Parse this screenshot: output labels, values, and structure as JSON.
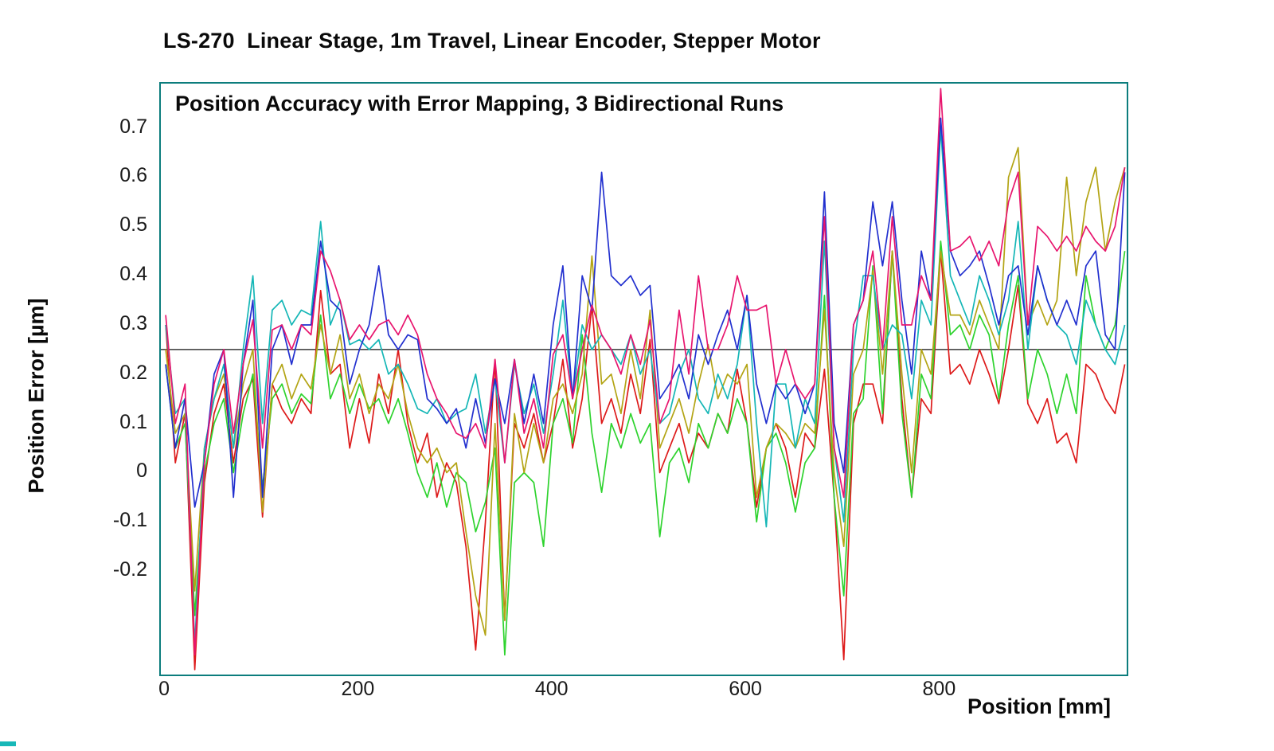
{
  "chart_data": {
    "type": "line",
    "title": "LS-270  Linear Stage, 1m Travel, Linear Encoder, Stepper Motor",
    "subtitle": "Position Accuracy with Error Mapping, 3 Bidirectional Runs",
    "xlabel": "Position [mm]",
    "ylabel": "Position Error [µm]",
    "frame_color": "#0c7d7d",
    "grid": false,
    "legend_position": "none",
    "xlim": [
      -5,
      992
    ],
    "ylim": [
      -0.41,
      0.79
    ],
    "reference_line_y": 0.25,
    "reference_line_color": "#111111",
    "x_start": 0,
    "x_step_mm": 10,
    "n_points": 100,
    "x_ticks": [
      {
        "value": 0,
        "label": "0"
      },
      {
        "value": 200,
        "label": "200"
      },
      {
        "value": 400,
        "label": "400"
      },
      {
        "value": 600,
        "label": "600"
      },
      {
        "value": 800,
        "label": "800"
      }
    ],
    "y_ticks": [
      {
        "value": 0.7,
        "label": "0.7"
      },
      {
        "value": 0.6,
        "label": "0.6"
      },
      {
        "value": 0.5,
        "label": "0.5"
      },
      {
        "value": 0.4,
        "label": "0.4"
      },
      {
        "value": 0.3,
        "label": "0.3"
      },
      {
        "value": 0.2,
        "label": "0.2"
      },
      {
        "value": 0.1,
        "label": "0.1"
      },
      {
        "value": 0.0,
        "label": "0"
      },
      {
        "value": -0.1,
        "label": "-0.1"
      },
      {
        "value": -0.2,
        "label": "-0.2"
      }
    ],
    "series": [
      {
        "name": "red-run",
        "color": "#dd1a1a",
        "values": [
          0.3,
          0.02,
          0.12,
          -0.4,
          -0.02,
          0.12,
          0.18,
          0.02,
          0.15,
          0.19,
          -0.09,
          0.18,
          0.13,
          0.1,
          0.15,
          0.12,
          0.37,
          0.2,
          0.22,
          0.05,
          0.15,
          0.06,
          0.2,
          0.12,
          0.25,
          0.1,
          0.02,
          0.08,
          -0.05,
          0.02,
          -0.02,
          -0.15,
          -0.36,
          -0.1,
          0.23,
          -0.3,
          0.1,
          0.05,
          0.12,
          0.02,
          0.1,
          0.23,
          0.05,
          0.15,
          0.34,
          0.1,
          0.15,
          0.08,
          0.2,
          0.12,
          0.27,
          0.0,
          0.05,
          0.1,
          0.02,
          0.08,
          0.05,
          0.12,
          0.08,
          0.21,
          0.1,
          -0.07,
          0.05,
          0.1,
          0.05,
          -0.05,
          0.08,
          0.05,
          0.21,
          -0.05,
          -0.38,
          0.1,
          0.18,
          0.18,
          0.1,
          0.45,
          0.15,
          -0.05,
          0.15,
          0.12,
          0.45,
          0.2,
          0.22,
          0.18,
          0.25,
          0.2,
          0.14,
          0.25,
          0.38,
          0.14,
          0.1,
          0.15,
          0.06,
          0.08,
          0.02,
          0.22,
          0.2,
          0.15,
          0.12,
          0.22
        ]
      },
      {
        "name": "green-run",
        "color": "#2ed32e",
        "values": [
          0.22,
          0.05,
          0.1,
          -0.29,
          0.0,
          0.1,
          0.15,
          0.0,
          0.12,
          0.2,
          -0.03,
          0.15,
          0.18,
          0.12,
          0.16,
          0.14,
          0.32,
          0.15,
          0.2,
          0.12,
          0.18,
          0.13,
          0.15,
          0.1,
          0.15,
          0.08,
          0.0,
          -0.05,
          0.02,
          -0.07,
          0.0,
          -0.02,
          -0.12,
          -0.06,
          0.05,
          -0.37,
          -0.02,
          0.0,
          -0.02,
          -0.15,
          0.1,
          0.15,
          0.06,
          0.28,
          0.08,
          -0.04,
          0.1,
          0.05,
          0.12,
          0.06,
          0.1,
          -0.13,
          0.02,
          0.05,
          -0.02,
          0.1,
          0.05,
          0.12,
          0.08,
          0.15,
          0.1,
          -0.1,
          0.05,
          0.08,
          0.02,
          -0.08,
          0.02,
          0.05,
          0.36,
          -0.05,
          -0.25,
          0.12,
          0.15,
          0.42,
          0.12,
          0.45,
          0.12,
          -0.05,
          0.2,
          0.15,
          0.47,
          0.28,
          0.3,
          0.25,
          0.32,
          0.28,
          0.15,
          0.3,
          0.4,
          0.15,
          0.25,
          0.2,
          0.12,
          0.2,
          0.12,
          0.4,
          0.3,
          0.25,
          0.3,
          0.45
        ]
      },
      {
        "name": "olive-run",
        "color": "#b3a414",
        "values": [
          0.25,
          0.08,
          0.12,
          -0.24,
          0.05,
          0.15,
          0.2,
          0.05,
          0.18,
          0.25,
          -0.08,
          0.18,
          0.22,
          0.15,
          0.2,
          0.17,
          0.3,
          0.2,
          0.28,
          0.15,
          0.2,
          0.12,
          0.18,
          0.15,
          0.22,
          0.12,
          0.05,
          0.02,
          0.05,
          0.0,
          0.02,
          -0.12,
          -0.25,
          -0.33,
          0.1,
          -0.3,
          0.12,
          0.0,
          0.1,
          0.02,
          0.15,
          0.18,
          0.12,
          0.2,
          0.44,
          0.18,
          0.2,
          0.12,
          0.25,
          0.15,
          0.33,
          0.05,
          0.1,
          0.15,
          0.08,
          0.18,
          0.26,
          0.15,
          0.2,
          0.18,
          0.22,
          -0.05,
          0.05,
          0.1,
          0.08,
          0.05,
          0.1,
          0.08,
          0.33,
          0.0,
          -0.15,
          0.2,
          0.25,
          0.41,
          0.2,
          0.45,
          0.2,
          0.0,
          0.25,
          0.2,
          0.45,
          0.32,
          0.32,
          0.28,
          0.35,
          0.3,
          0.25,
          0.6,
          0.66,
          0.3,
          0.35,
          0.3,
          0.35,
          0.6,
          0.4,
          0.55,
          0.62,
          0.45,
          0.55,
          0.62
        ]
      },
      {
        "name": "cyan-run",
        "color": "#14b6b6",
        "values": [
          0.3,
          0.12,
          0.15,
          -0.35,
          0.05,
          0.15,
          0.22,
          0.05,
          0.25,
          0.4,
          0.1,
          0.33,
          0.35,
          0.3,
          0.33,
          0.32,
          0.51,
          0.3,
          0.35,
          0.26,
          0.27,
          0.25,
          0.27,
          0.2,
          0.22,
          0.18,
          0.13,
          0.12,
          0.15,
          0.1,
          0.12,
          0.13,
          0.2,
          0.08,
          0.19,
          0.02,
          0.22,
          0.12,
          0.18,
          0.08,
          0.2,
          0.35,
          0.15,
          0.3,
          0.25,
          0.28,
          0.25,
          0.22,
          0.28,
          0.2,
          0.25,
          0.1,
          0.12,
          0.2,
          0.25,
          0.15,
          0.12,
          0.2,
          0.15,
          0.22,
          0.36,
          0.1,
          -0.11,
          0.18,
          0.18,
          0.05,
          0.15,
          0.1,
          0.47,
          0.05,
          -0.1,
          0.25,
          0.4,
          0.4,
          0.25,
          0.3,
          0.28,
          0.15,
          0.35,
          0.3,
          0.7,
          0.4,
          0.35,
          0.3,
          0.4,
          0.35,
          0.28,
          0.35,
          0.51,
          0.25,
          0.42,
          0.35,
          0.3,
          0.28,
          0.22,
          0.35,
          0.3,
          0.25,
          0.22,
          0.3
        ]
      },
      {
        "name": "blue-run",
        "color": "#2230cf",
        "values": [
          0.22,
          0.05,
          0.15,
          -0.07,
          0.02,
          0.2,
          0.25,
          -0.05,
          0.22,
          0.35,
          -0.05,
          0.25,
          0.3,
          0.22,
          0.3,
          0.3,
          0.47,
          0.35,
          0.33,
          0.18,
          0.25,
          0.3,
          0.42,
          0.28,
          0.25,
          0.28,
          0.27,
          0.15,
          0.13,
          0.1,
          0.13,
          0.05,
          0.15,
          0.06,
          0.19,
          0.1,
          0.23,
          0.1,
          0.2,
          0.1,
          0.3,
          0.42,
          0.15,
          0.4,
          0.33,
          0.61,
          0.4,
          0.38,
          0.4,
          0.36,
          0.38,
          0.15,
          0.18,
          0.22,
          0.15,
          0.28,
          0.22,
          0.28,
          0.33,
          0.25,
          0.36,
          0.18,
          0.1,
          0.18,
          0.15,
          0.18,
          0.12,
          0.18,
          0.57,
          0.1,
          0.0,
          0.3,
          0.35,
          0.55,
          0.42,
          0.55,
          0.35,
          0.2,
          0.45,
          0.35,
          0.72,
          0.45,
          0.4,
          0.42,
          0.45,
          0.38,
          0.3,
          0.4,
          0.42,
          0.28,
          0.42,
          0.35,
          0.3,
          0.35,
          0.3,
          0.42,
          0.45,
          0.28,
          0.25,
          0.61
        ]
      },
      {
        "name": "magenta-run",
        "color": "#e8156e",
        "values": [
          0.32,
          0.1,
          0.18,
          -0.37,
          0.02,
          0.18,
          0.25,
          0.08,
          0.22,
          0.31,
          0.05,
          0.29,
          0.3,
          0.25,
          0.3,
          0.28,
          0.45,
          0.41,
          0.35,
          0.27,
          0.3,
          0.27,
          0.3,
          0.31,
          0.28,
          0.32,
          0.28,
          0.2,
          0.15,
          0.12,
          0.08,
          0.07,
          0.1,
          0.05,
          0.23,
          0.02,
          0.23,
          0.08,
          0.15,
          0.05,
          0.24,
          0.28,
          0.15,
          0.25,
          0.34,
          0.28,
          0.25,
          0.2,
          0.28,
          0.22,
          0.31,
          0.1,
          0.15,
          0.33,
          0.2,
          0.4,
          0.25,
          0.25,
          0.3,
          0.4,
          0.33,
          0.33,
          0.34,
          0.18,
          0.25,
          0.18,
          0.15,
          0.18,
          0.52,
          0.05,
          -0.05,
          0.3,
          0.35,
          0.45,
          0.25,
          0.52,
          0.3,
          0.3,
          0.4,
          0.35,
          0.78,
          0.45,
          0.46,
          0.48,
          0.43,
          0.47,
          0.42,
          0.55,
          0.61,
          0.3,
          0.5,
          0.48,
          0.45,
          0.48,
          0.45,
          0.5,
          0.47,
          0.45,
          0.5,
          0.62
        ]
      }
    ]
  }
}
